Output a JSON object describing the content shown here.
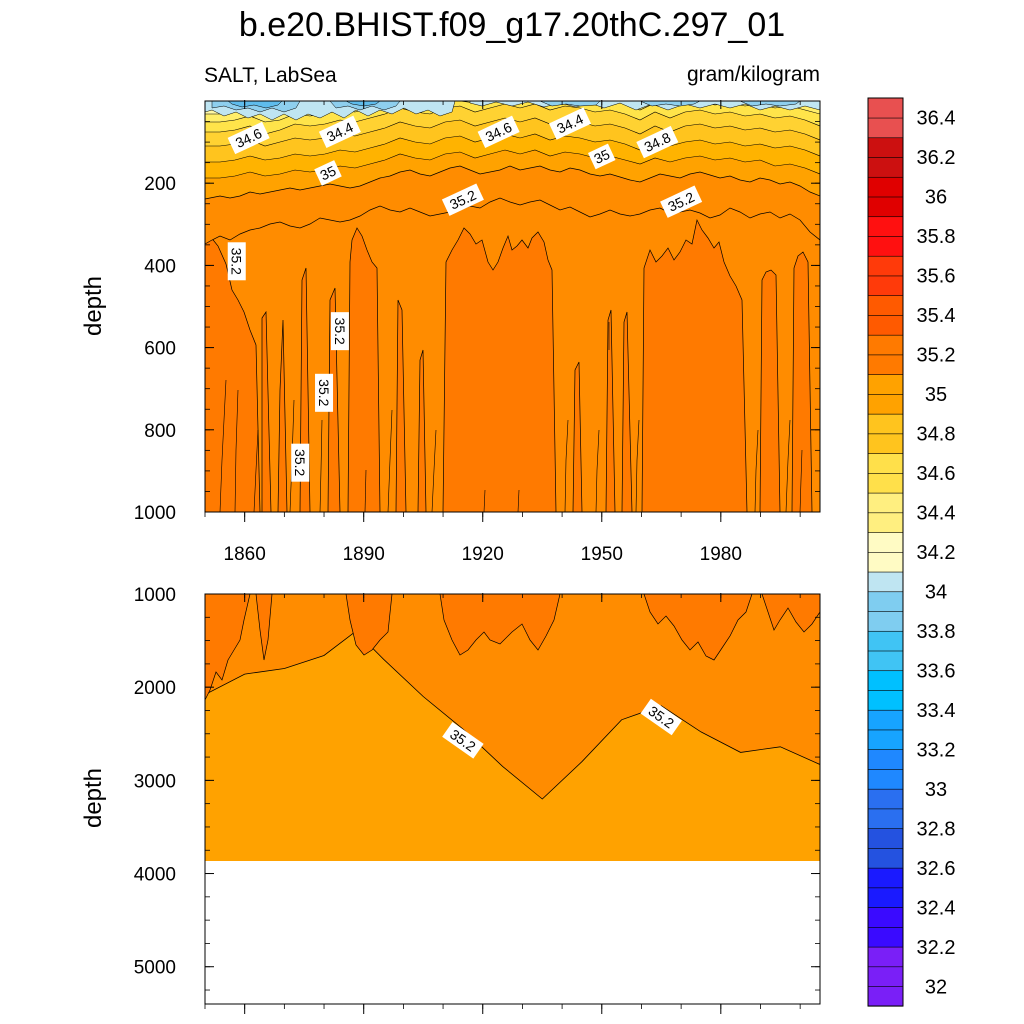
{
  "chart_data": {
    "type": "contour",
    "title": "b.e20.BHIST.f09_g17.20thC.297_01",
    "left_subtitle": "SALT, LabSea",
    "right_subtitle": "gram/kilogram",
    "xlabel": "",
    "ylabel": "depth",
    "x_range": [
      1850,
      2005
    ],
    "x_ticks": [
      1860,
      1890,
      1920,
      1950,
      1980
    ],
    "x_tick_labels": [
      "1860",
      "1890",
      "1920",
      "1950",
      "1980"
    ],
    "panels": [
      {
        "name": "upper",
        "depth_range": [
          0,
          1000
        ],
        "y_ticks": [
          200,
          400,
          600,
          800,
          1000
        ],
        "y_tick_labels": [
          "200",
          "400",
          "600",
          "800",
          "1000"
        ],
        "contour_labels": [
          {
            "text": "34.6",
            "year": 1861,
            "depth": 90
          },
          {
            "text": "34.4",
            "year": 1884,
            "depth": 75
          },
          {
            "text": "34.6",
            "year": 1924,
            "depth": 75
          },
          {
            "text": "34.4",
            "year": 1942,
            "depth": 55
          },
          {
            "text": "34.8",
            "year": 1964,
            "depth": 100
          },
          {
            "text": "35",
            "year": 1950,
            "depth": 135
          },
          {
            "text": "35",
            "year": 1881,
            "depth": 175
          },
          {
            "text": "35.2",
            "year": 1915,
            "depth": 240
          },
          {
            "text": "35.2",
            "year": 1970,
            "depth": 245
          },
          {
            "text": "35.2",
            "year": 1858,
            "depth": 390
          },
          {
            "text": "35.2",
            "year": 1884,
            "depth": 560
          },
          {
            "text": "35.2",
            "year": 1880,
            "depth": 710
          },
          {
            "text": "35.2",
            "year": 1874,
            "depth": 880
          }
        ]
      },
      {
        "name": "lower",
        "depth_range": [
          1000,
          5400
        ],
        "y_ticks": [
          1000,
          2000,
          3000,
          4000,
          5000
        ],
        "y_tick_labels": [
          "1000",
          "2000",
          "3000",
          "4000",
          "5000"
        ],
        "ocean_bottom_depth": 3870,
        "contour_labels": [
          {
            "text": "35.2",
            "year": 1915,
            "depth": 2570
          },
          {
            "text": "35.2",
            "year": 1965,
            "depth": 2320
          }
        ],
        "contour_35_2_depth_profile": {
          "years": [
            1850,
            1860,
            1870,
            1880,
            1888,
            1895,
            1905,
            1915,
            1925,
            1935,
            1945,
            1955,
            1965,
            1975,
            1985,
            1995,
            2005
          ],
          "depths": [
            2080,
            1860,
            1800,
            1660,
            1400,
            1700,
            2100,
            2450,
            2850,
            3200,
            2800,
            2350,
            2200,
            2480,
            2700,
            2640,
            2830
          ]
        }
      }
    ],
    "colorbar": {
      "min": 32.0,
      "max": 36.6,
      "step": 0.1,
      "labels": [
        "36.4",
        "36.2",
        "36",
        "35.8",
        "35.6",
        "35.4",
        "35.2",
        "35",
        "34.8",
        "34.6",
        "34.4",
        "34.2",
        "34",
        "33.8",
        "33.6",
        "33.4",
        "33.2",
        "33",
        "32.8",
        "32.6",
        "32.4",
        "32.2",
        "32"
      ],
      "label_values": [
        36.4,
        36.2,
        36.0,
        35.8,
        35.6,
        35.4,
        35.2,
        35.0,
        34.8,
        34.6,
        34.4,
        34.2,
        34.0,
        33.8,
        33.6,
        33.4,
        33.2,
        33.0,
        32.8,
        32.6,
        32.4,
        32.2,
        32.0
      ]
    },
    "colors": {
      "fill_35_0": "#ffa200",
      "fill_35_1": "#ff8c00",
      "fill_35_2": "#ff7a00",
      "fill_34_9": "#ffb300",
      "fill_34_8": "#ffc41e",
      "fill_34_7": "#ffd232",
      "fill_34_6": "#ffe44a",
      "fill_34_5": "#ffee6a",
      "fill_34_3": "#fff7a3",
      "fill_34_1": "#bfe5f2",
      "fill_33_9": "#8ecfee",
      "fill_33_7": "#5fbcec",
      "land": "#ffffff"
    }
  }
}
